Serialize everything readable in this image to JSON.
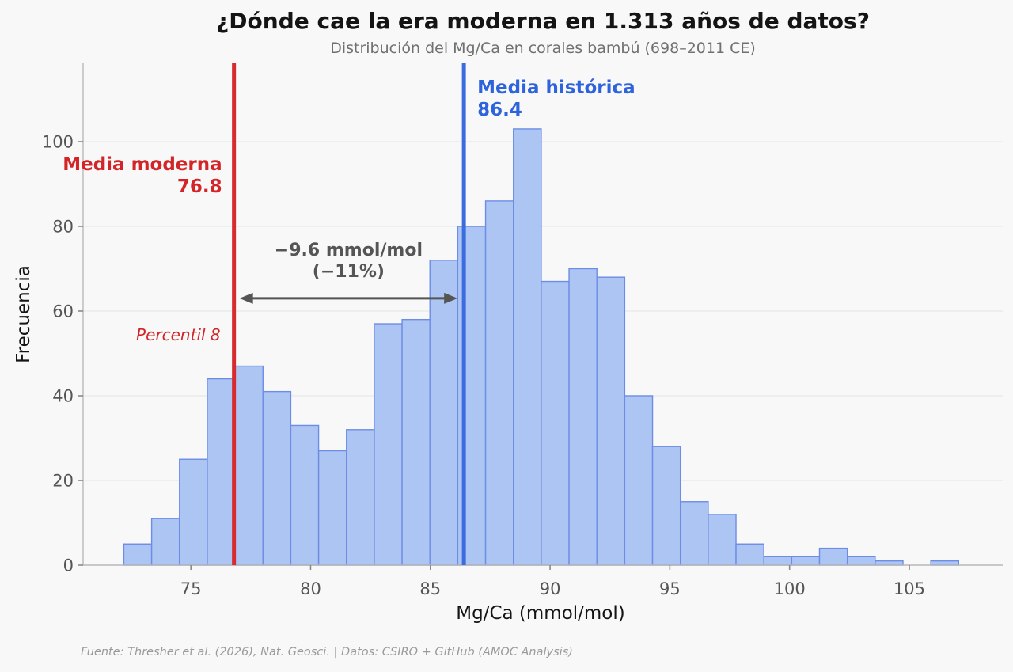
{
  "header": {
    "title": "¿Dónde cae la era moderna en 1.313 años de datos?",
    "subtitle": "Distribución del Mg/Ca en corales bambú (698–2011 CE)"
  },
  "chart_data": {
    "type": "bar",
    "subtype": "histogram",
    "title": "¿Dónde cae la era moderna en 1.313 años de datos?",
    "subtitle": "Distribución del Mg/Ca en corales bambú (698–2011 CE)",
    "xlabel": "Mg/Ca (mmol/mol)",
    "ylabel": "Frecuencia",
    "bin_start": 72.2,
    "bin_width": 1.162,
    "counts": [
      5,
      11,
      25,
      44,
      47,
      41,
      33,
      27,
      32,
      57,
      58,
      72,
      80,
      86,
      103,
      67,
      70,
      68,
      40,
      28,
      15,
      12,
      5,
      2,
      2,
      4,
      2,
      1,
      0,
      1
    ],
    "xlim": [
      70.5,
      108.9
    ],
    "ylim": [
      0,
      118.5
    ],
    "xticks": [
      75,
      80,
      85,
      90,
      95,
      100,
      105
    ],
    "yticks": [
      0,
      20,
      40,
      60,
      80,
      100
    ],
    "grid": "horizontal",
    "legend": "none",
    "annotations": {
      "modern_mean": {
        "label": "Media moderna",
        "value": "76.8",
        "x": 76.8
      },
      "historical_mean": {
        "label": "Media histórica",
        "value": "86.4",
        "x": 86.4
      },
      "percentile": {
        "label": "Percentil 8"
      },
      "difference": {
        "line1": "−9.6 mmol/mol",
        "line2": "(−11%)",
        "arrow_y": 63
      }
    },
    "colors": {
      "background": "#f8f8f8",
      "bar_fill": "#adc5f2",
      "bar_edge": "#6d8ce6",
      "red_line": "#d92b2e",
      "red_text": "#d32527",
      "blue_line": "#3a6ce0",
      "blue_text": "#2d63dc",
      "grid": "#e7e7e7",
      "spine": "#b8b8b8",
      "tick": "#8a8a8a",
      "tick_label": "#555555",
      "arrow": "#555555"
    }
  },
  "footer": {
    "source": "Fuente: Thresher et al. (2026), Nat. Geosci. | Datos: CSIRO + GitHub (AMOC Analysis)"
  }
}
